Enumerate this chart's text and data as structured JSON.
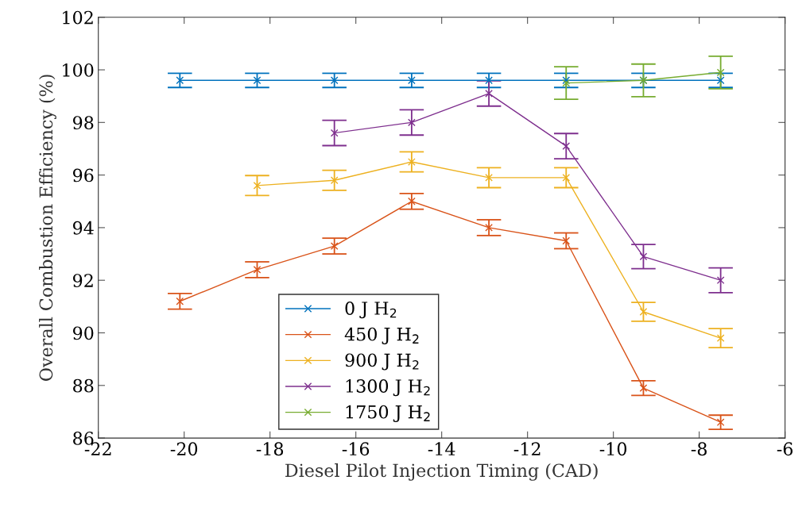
{
  "chart_data": {
    "type": "line",
    "xlabel": "Diesel Pilot Injection Timing (CAD)",
    "ylabel": "Overall Combustion Efficiency (%)",
    "xlim": [
      -22,
      -6
    ],
    "xticks": [
      -22,
      -20,
      -18,
      -16,
      -14,
      -12,
      -10,
      -8,
      -6
    ],
    "ylim": [
      86,
      102
    ],
    "yticks": [
      86,
      88,
      90,
      92,
      94,
      96,
      98,
      100,
      102
    ],
    "grid": false,
    "legend": "bottom left",
    "marker": "cross",
    "line_style": "solid",
    "series": [
      {
        "name": "0 J H$_{2}$",
        "color": "#0072bd",
        "x": [
          -20.1,
          -18.3,
          -16.5,
          -14.7,
          -12.9,
          -11.1,
          -9.3,
          -7.5
        ],
        "values": [
          99.6,
          99.6,
          99.6,
          99.6,
          99.6,
          99.6,
          99.6,
          99.6
        ],
        "errors": [
          0.27,
          0.27,
          0.27,
          0.27,
          0.27,
          0.27,
          0.27,
          0.27
        ]
      },
      {
        "name": "450 J H$_{2}$",
        "color": "#d95319",
        "x": [
          -20.1,
          -18.3,
          -16.5,
          -14.7,
          -12.9,
          -11.1,
          -9.3,
          -7.5
        ],
        "values": [
          91.2,
          92.4,
          93.3,
          95.0,
          94.0,
          93.5,
          87.9,
          86.6
        ],
        "errors": [
          0.3,
          0.3,
          0.3,
          0.3,
          0.3,
          0.3,
          0.28,
          0.27
        ]
      },
      {
        "name": "900 J H$_{2}$",
        "color": "#edb120",
        "x": [
          -18.3,
          -16.5,
          -14.7,
          -12.9,
          -11.1,
          -9.3,
          -7.5
        ],
        "values": [
          95.6,
          95.8,
          96.5,
          95.9,
          95.9,
          90.8,
          89.8
        ],
        "errors": [
          0.38,
          0.38,
          0.38,
          0.38,
          0.38,
          0.36,
          0.36
        ]
      },
      {
        "name": "1300 J H$_{2}$",
        "color": "#7e2f8e",
        "x": [
          -16.5,
          -14.7,
          -12.9,
          -11.1,
          -9.3,
          -7.5
        ],
        "values": [
          97.6,
          98.0,
          99.1,
          97.1,
          92.9,
          92.0
        ],
        "errors": [
          0.48,
          0.48,
          0.48,
          0.48,
          0.46,
          0.47
        ]
      },
      {
        "name": "1750 J H$_{2}$",
        "color": "#77ac30",
        "x": [
          -11.1,
          -9.3,
          -7.5
        ],
        "values": [
          99.5,
          99.6,
          99.9
        ],
        "errors": [
          0.62,
          0.62,
          0.62
        ]
      }
    ]
  }
}
